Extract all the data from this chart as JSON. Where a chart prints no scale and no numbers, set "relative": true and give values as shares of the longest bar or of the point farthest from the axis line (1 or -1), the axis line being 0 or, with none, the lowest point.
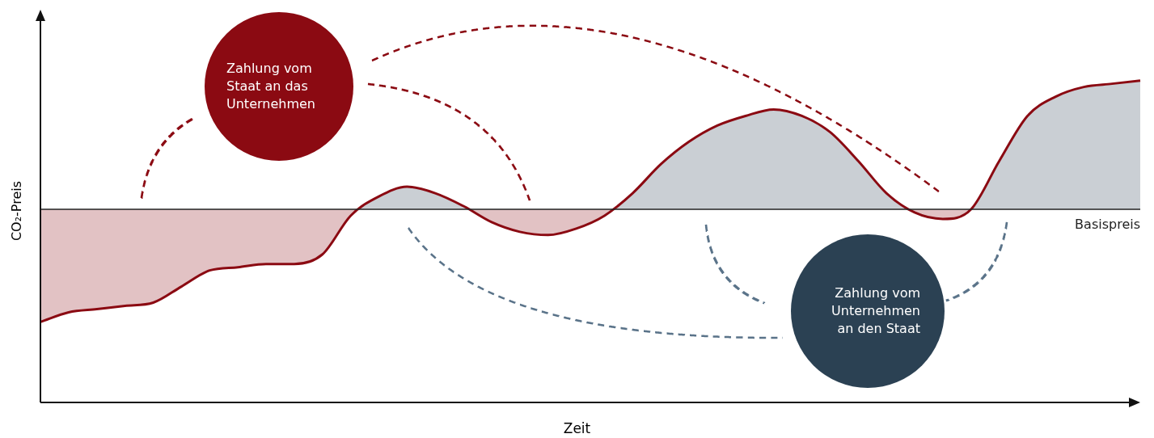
{
  "chart_data": {
    "type": "line",
    "relative": true,
    "xlabel": "Zeit",
    "ylabel": "CO₂-Preis",
    "categories": [
      null,
      null,
      null,
      null,
      null,
      null,
      null,
      null,
      null,
      null,
      null,
      null,
      null,
      null,
      null,
      null,
      null,
      null,
      null,
      null,
      null,
      null,
      null,
      null,
      null,
      null,
      null,
      null,
      null,
      null,
      null,
      null,
      null,
      null,
      null,
      null,
      null,
      null,
      null,
      null
    ],
    "series": [
      {
        "color": "#8b0a12",
        "values": [
          0.25,
          0.28,
          0.29,
          0.3,
          0.31,
          0.36,
          0.41,
          0.42,
          0.43,
          0.43,
          0.46,
          0.58,
          0.64,
          0.67,
          0.65,
          0.61,
          0.56,
          0.53,
          0.52,
          0.54,
          0.58,
          0.65,
          0.74,
          0.81,
          0.86,
          0.89,
          0.91,
          0.89,
          0.84,
          0.75,
          0.65,
          0.59,
          0.57,
          0.6,
          0.75,
          0.89,
          0.95,
          0.98,
          0.99,
          1
        ]
      }
    ],
    "ref_lines": [
      {
        "axis": "y",
        "value": 0.6,
        "label": "Basispreis",
        "color": "#222222"
      }
    ],
    "annotations": [
      "Zahlung vom Staat an das Unternehmen",
      "Zahlung vom Unternehmen an den Staat"
    ],
    "legend": false,
    "marker": "none",
    "line_style": "solid"
  }
}
